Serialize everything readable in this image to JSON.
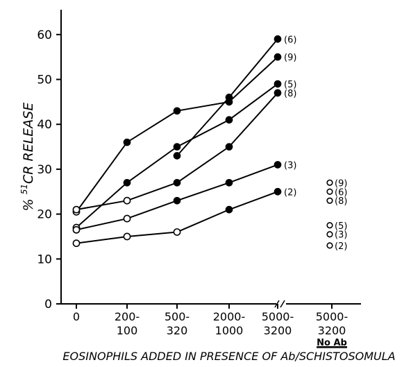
{
  "chart_data": {
    "type": "line",
    "title": "",
    "xlabel": "EOSINOPHILS ADDED IN PRESENCE OF Ab/SCHISTOSOMULA",
    "ylabel": "% 51CR RELEASE",
    "ylabel_parts": {
      "pre": "% ",
      "sup": "51",
      "post": "CR RELEASE"
    },
    "ylim": [
      0,
      60
    ],
    "yticks": [
      "0",
      "10",
      "20",
      "30",
      "40",
      "50",
      "60"
    ],
    "categories": [
      {
        "line1": "0",
        "line2": "",
        "line3": ""
      },
      {
        "line1": "200-",
        "line2": "100",
        "line3": ""
      },
      {
        "line1": "500-",
        "line2": "320",
        "line3": ""
      },
      {
        "line1": "2000-",
        "line2": "1000",
        "line3": ""
      },
      {
        "line1": "5000-",
        "line2": "3200",
        "line3": ""
      },
      {
        "line1": "5000-",
        "line2": "3200",
        "line3": "No Ab"
      }
    ],
    "series": [
      {
        "name": "(6)",
        "points": [
          [
            2,
            33
          ],
          [
            3,
            46
          ],
          [
            4,
            59
          ]
        ],
        "filled": [
          true,
          true,
          true
        ]
      },
      {
        "name": "(9)",
        "points": [
          [
            0,
            20.5
          ],
          [
            1,
            36
          ],
          [
            2,
            43
          ],
          [
            3,
            45
          ],
          [
            4,
            55
          ]
        ],
        "filled": [
          false,
          true,
          true,
          true,
          true
        ]
      },
      {
        "name": "(5)",
        "points": [
          [
            0,
            17
          ],
          [
            1,
            27
          ],
          [
            2,
            35
          ],
          [
            3,
            41
          ],
          [
            4,
            49
          ]
        ],
        "filled": [
          false,
          true,
          true,
          true,
          true
        ]
      },
      {
        "name": "(8)",
        "points": [
          [
            0,
            21
          ],
          [
            1,
            23
          ],
          [
            2,
            27
          ],
          [
            3,
            35
          ],
          [
            4,
            47
          ]
        ],
        "filled": [
          false,
          false,
          true,
          true,
          true
        ]
      },
      {
        "name": "(3)",
        "points": [
          [
            0,
            16.5
          ],
          [
            1,
            19
          ],
          [
            2,
            23
          ],
          [
            3,
            27
          ],
          [
            4,
            31
          ]
        ],
        "filled": [
          false,
          false,
          true,
          true,
          true
        ]
      },
      {
        "name": "(2)",
        "points": [
          [
            0,
            13.5
          ],
          [
            1,
            15
          ],
          [
            2,
            16
          ],
          [
            3,
            21
          ],
          [
            4,
            25
          ]
        ],
        "filled": [
          false,
          false,
          false,
          true,
          true
        ]
      }
    ],
    "no_ab_points": [
      {
        "name": "(9)",
        "value": 27
      },
      {
        "name": "(6)",
        "value": 25
      },
      {
        "name": "(8)",
        "value": 23
      },
      {
        "name": "(5)",
        "value": 17.5
      },
      {
        "name": "(3)",
        "value": 15.5
      },
      {
        "name": "(2)",
        "value": 13
      }
    ],
    "legend": "none",
    "grid": false
  }
}
